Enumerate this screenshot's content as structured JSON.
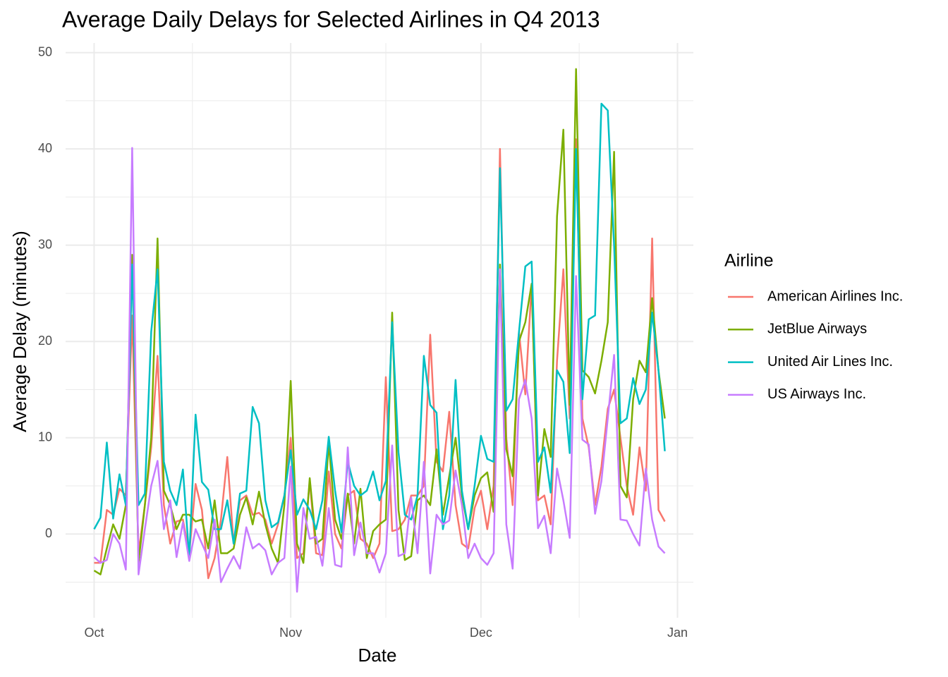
{
  "chart_data": {
    "type": "line",
    "title": "Average Daily Delays for Selected Airlines in Q4 2013",
    "xlabel": "Date",
    "ylabel": "Average Delay (minutes)",
    "legend_title": "Airline",
    "legend": "right",
    "grid": true,
    "x": [
      0,
      1,
      2,
      3,
      4,
      5,
      6,
      7,
      8,
      9,
      10,
      11,
      12,
      13,
      14,
      15,
      16,
      17,
      18,
      19,
      20,
      21,
      22,
      23,
      24,
      25,
      26,
      27,
      28,
      29,
      30,
      31,
      32,
      33,
      34,
      35,
      36,
      37,
      38,
      39,
      40,
      41,
      42,
      43,
      44,
      45,
      46,
      47,
      48,
      49,
      50,
      51,
      52,
      53,
      54,
      55,
      56,
      57,
      58,
      59,
      60,
      61,
      62,
      63,
      64,
      65,
      66,
      67,
      68,
      69,
      70,
      71,
      72,
      73,
      74,
      75,
      76,
      77,
      78,
      79,
      80,
      81,
      82,
      83,
      84,
      85,
      86,
      87,
      88,
      89,
      90
    ],
    "xlim": [
      -4.5,
      94.5
    ],
    "xticks": [
      {
        "value": 0,
        "label": "Oct"
      },
      {
        "value": 31,
        "label": "Nov"
      },
      {
        "value": 61,
        "label": "Dec"
      },
      {
        "value": 92,
        "label": "Jan"
      }
    ],
    "xminor": [
      15.5,
      46,
      76.5
    ],
    "ylim": [
      -8.7,
      51
    ],
    "yticks": [
      0,
      10,
      20,
      30,
      40,
      50
    ],
    "yminor": [
      -5,
      5,
      15,
      25,
      35,
      45
    ],
    "series": [
      {
        "name": "American Airlines Inc.",
        "color": "#F8766D",
        "values": [
          -3,
          -3,
          2.5,
          2,
          4.7,
          4,
          22.7,
          -2,
          3,
          9,
          18.5,
          3,
          -1,
          1.3,
          1.5,
          -2,
          5.2,
          2.5,
          -4.6,
          -2.5,
          1.5,
          8,
          -1,
          3.5,
          4,
          2,
          2.2,
          1.5,
          -1,
          1,
          4,
          10,
          -2.5,
          -2,
          5.5,
          -2,
          -2.2,
          6.5,
          0,
          -1.5,
          4,
          4.5,
          -0.5,
          -1,
          -2.5,
          -1,
          16.3,
          0.3,
          0.5,
          1.5,
          4,
          4,
          5,
          20.7,
          7.5,
          6.5,
          12.7,
          3,
          -1,
          -1.5,
          2.7,
          4.5,
          0.5,
          5,
          40,
          10,
          3,
          21,
          14.5,
          26,
          3.5,
          4,
          1,
          18,
          27.5,
          12,
          41,
          12,
          9,
          3,
          7,
          13,
          15,
          10,
          5,
          2,
          9,
          4.5,
          30.7,
          2.5,
          1.3
        ]
      },
      {
        "name": "JetBlue Airways",
        "color": "#7CAE00",
        "values": [
          -3.8,
          -4.2,
          -1.5,
          1,
          -0.5,
          3,
          29,
          -3,
          3,
          10,
          30.7,
          4.5,
          3,
          0.5,
          2,
          2,
          1.3,
          1.5,
          -1.5,
          3.5,
          -2,
          -2,
          -1.5,
          2,
          3.8,
          1,
          4.4,
          1,
          -1.5,
          -3,
          3,
          15.9,
          -1,
          -3,
          5.8,
          -1,
          -0.5,
          9.5,
          1.5,
          -0.5,
          4.2,
          -1,
          4.7,
          -2.5,
          0.3,
          1,
          1.5,
          23,
          2.5,
          -2.7,
          -2.3,
          3.5,
          4,
          3,
          8.8,
          2,
          6,
          10,
          4,
          0.5,
          4,
          5.8,
          6.4,
          2.3,
          28,
          8.8,
          6,
          20,
          22,
          26,
          4,
          10.9,
          8,
          33,
          42,
          13.4,
          48.3,
          17,
          16.3,
          14.6,
          18,
          22,
          39.7,
          5,
          3.8,
          14,
          18,
          16.8,
          24.5,
          17,
          12
        ]
      },
      {
        "name": "United Air Lines Inc.",
        "color": "#00BFC4",
        "values": [
          0.5,
          1.7,
          9.5,
          1.6,
          6.2,
          3,
          28,
          3,
          4.2,
          21,
          27.5,
          7.5,
          4.5,
          3,
          6.7,
          -2.5,
          12.4,
          5.4,
          4.6,
          0.5,
          0.5,
          3.5,
          -1,
          4.2,
          4.5,
          13.2,
          11.5,
          3.5,
          0.7,
          1.2,
          4,
          8.7,
          2,
          3.6,
          2.5,
          0.5,
          3.5,
          10.1,
          4.5,
          0.2,
          7.5,
          5,
          4,
          4.5,
          6.5,
          3.5,
          5.5,
          22,
          8.5,
          2,
          1.5,
          4,
          18.5,
          13.4,
          12.6,
          0.5,
          4,
          16,
          4.5,
          0.5,
          5,
          10.2,
          7.8,
          7.5,
          38,
          12.8,
          14,
          21,
          27.8,
          28.3,
          7.5,
          9,
          4.3,
          17,
          15.8,
          8.4,
          40,
          14,
          22.3,
          22.7,
          44.7,
          44,
          30,
          11.5,
          12,
          16.2,
          13.5,
          15,
          23,
          17,
          8.6
        ]
      },
      {
        "name": "US Airways Inc.",
        "color": "#C77CFF",
        "values": [
          -2.4,
          -3,
          -2.7,
          0,
          -1,
          -3.7,
          40.1,
          -4.2,
          0.5,
          5,
          7.6,
          0.5,
          3.5,
          -2.4,
          1.2,
          -2.8,
          0.5,
          -1,
          -2.5,
          1.5,
          -5,
          -3.6,
          -2.3,
          -3.6,
          0.7,
          -1.5,
          -1,
          -1.7,
          -4.2,
          -3,
          -2.5,
          7,
          -6,
          2.7,
          -0.5,
          -0.3,
          -3.3,
          2.7,
          -3.2,
          -3.4,
          9,
          -2.2,
          1.2,
          -2,
          -2,
          -4,
          -2,
          9.2,
          -2.3,
          -2,
          3.8,
          -2,
          7.5,
          -4.1,
          2,
          1,
          1.4,
          6.6,
          3,
          -2.5,
          -1,
          -2.5,
          -3.2,
          -2,
          27.5,
          1,
          -3.6,
          14,
          16,
          12,
          0.6,
          1.9,
          -2,
          6.8,
          3.5,
          -0.4,
          26.8,
          9.8,
          9.3,
          2.1,
          5.5,
          12,
          18.6,
          1.5,
          1.4,
          0,
          -1.2,
          6.8,
          1.5,
          -1.3,
          -2
        ]
      }
    ]
  }
}
